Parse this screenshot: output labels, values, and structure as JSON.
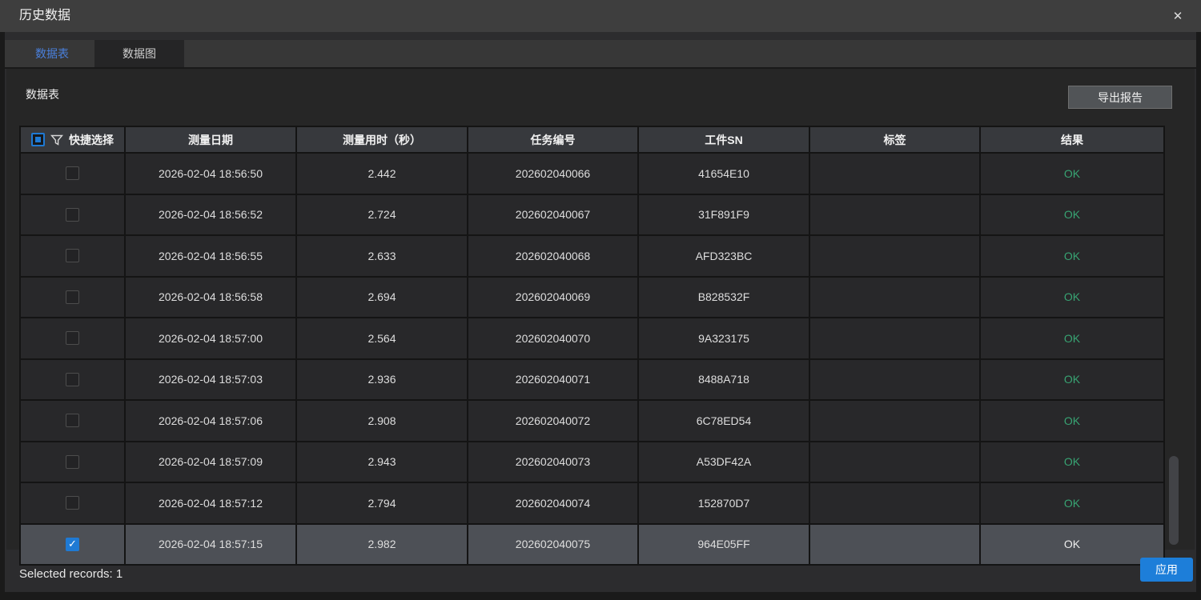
{
  "window": {
    "title": "历史数据",
    "close_glyph": "✕"
  },
  "tabs": [
    {
      "label": "数据表",
      "active": true
    },
    {
      "label": "数据图",
      "active": false
    }
  ],
  "panel": {
    "title": "数据表",
    "export_button_label": "导出报告"
  },
  "table": {
    "select_header_label": "快捷选择",
    "header_checkbox_state": "partial",
    "filter_icon": "funnel-icon",
    "columns": [
      "测量日期",
      "测量用时（秒）",
      "任务编号",
      "工件SN",
      "标签",
      "结果"
    ],
    "check_glyph": "✓",
    "rows": [
      {
        "checked": false,
        "selected": false,
        "date": "2026-02-04 18:56:50",
        "duration": "2.442",
        "task": "202602040066",
        "sn": "41654E10",
        "tag": "",
        "result": "OK"
      },
      {
        "checked": false,
        "selected": false,
        "date": "2026-02-04 18:56:52",
        "duration": "2.724",
        "task": "202602040067",
        "sn": "31F891F9",
        "tag": "",
        "result": "OK"
      },
      {
        "checked": false,
        "selected": false,
        "date": "2026-02-04 18:56:55",
        "duration": "2.633",
        "task": "202602040068",
        "sn": "AFD323BC",
        "tag": "",
        "result": "OK"
      },
      {
        "checked": false,
        "selected": false,
        "date": "2026-02-04 18:56:58",
        "duration": "2.694",
        "task": "202602040069",
        "sn": "B828532F",
        "tag": "",
        "result": "OK"
      },
      {
        "checked": false,
        "selected": false,
        "date": "2026-02-04 18:57:00",
        "duration": "2.564",
        "task": "202602040070",
        "sn": "9A323175",
        "tag": "",
        "result": "OK"
      },
      {
        "checked": false,
        "selected": false,
        "date": "2026-02-04 18:57:03",
        "duration": "2.936",
        "task": "202602040071",
        "sn": "8488A718",
        "tag": "",
        "result": "OK"
      },
      {
        "checked": false,
        "selected": false,
        "date": "2026-02-04 18:57:06",
        "duration": "2.908",
        "task": "202602040072",
        "sn": "6C78ED54",
        "tag": "",
        "result": "OK"
      },
      {
        "checked": false,
        "selected": false,
        "date": "2026-02-04 18:57:09",
        "duration": "2.943",
        "task": "202602040073",
        "sn": "A53DF42A",
        "tag": "",
        "result": "OK"
      },
      {
        "checked": false,
        "selected": false,
        "date": "2026-02-04 18:57:12",
        "duration": "2.794",
        "task": "202602040074",
        "sn": "152870D7",
        "tag": "",
        "result": "OK"
      },
      {
        "checked": true,
        "selected": true,
        "date": "2026-02-04 18:57:15",
        "duration": "2.982",
        "task": "202602040075",
        "sn": "964E05FF",
        "tag": "",
        "result": "OK"
      }
    ]
  },
  "footer": {
    "status_text": "Selected records: 1",
    "apply_button_label": "应用"
  },
  "colors": {
    "accent_blue": "#1d7ed9",
    "checkbox_blue": "#1f7ad4",
    "tab_active_blue": "#4a80dd",
    "result_ok_green": "#38a473",
    "selected_row_bg": "#4d5056"
  }
}
